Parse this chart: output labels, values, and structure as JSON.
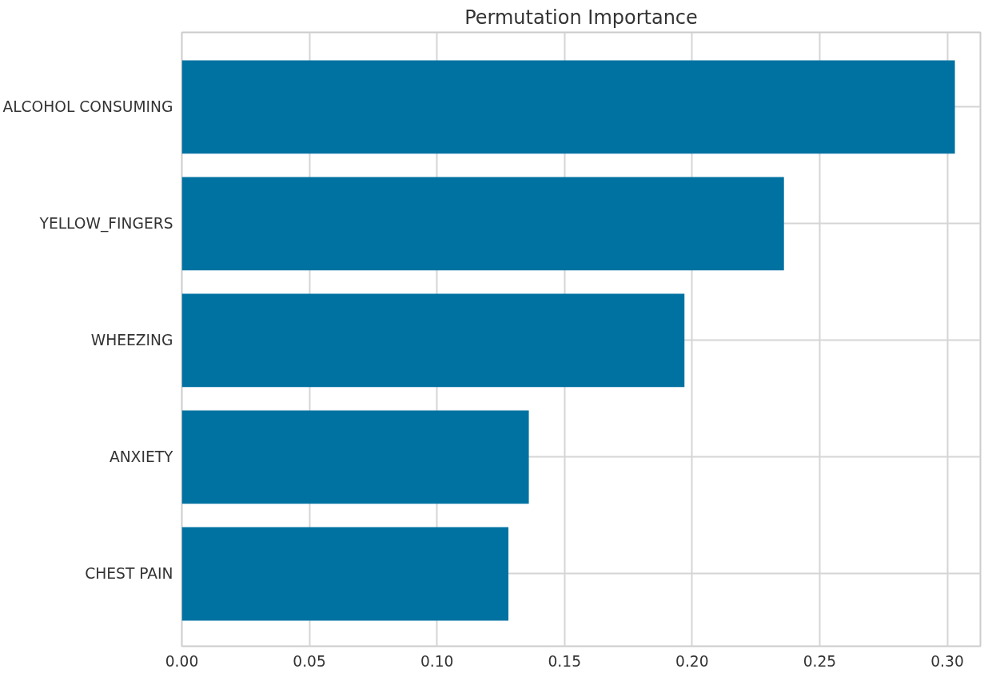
{
  "chart_data": {
    "type": "bar",
    "orientation": "horizontal",
    "title": "Permutation Importance",
    "categories": [
      "ALCOHOL CONSUMING",
      "YELLOW_FINGERS",
      "WHEEZING",
      "ANXIETY",
      "CHEST PAIN"
    ],
    "values": [
      0.303,
      0.236,
      0.197,
      0.136,
      0.128
    ],
    "color": "#0072a2",
    "xlim": [
      0,
      0.313
    ],
    "xticks": [
      {
        "value": 0,
        "label": "0.00"
      },
      {
        "value": 0.05,
        "label": "0.05"
      },
      {
        "value": 0.1,
        "label": "0.10"
      },
      {
        "value": 0.15,
        "label": "0.15"
      },
      {
        "value": 0.2,
        "label": "0.20"
      },
      {
        "value": 0.25,
        "label": "0.25"
      },
      {
        "value": 0.3,
        "label": "0.30"
      }
    ],
    "grid": true
  }
}
